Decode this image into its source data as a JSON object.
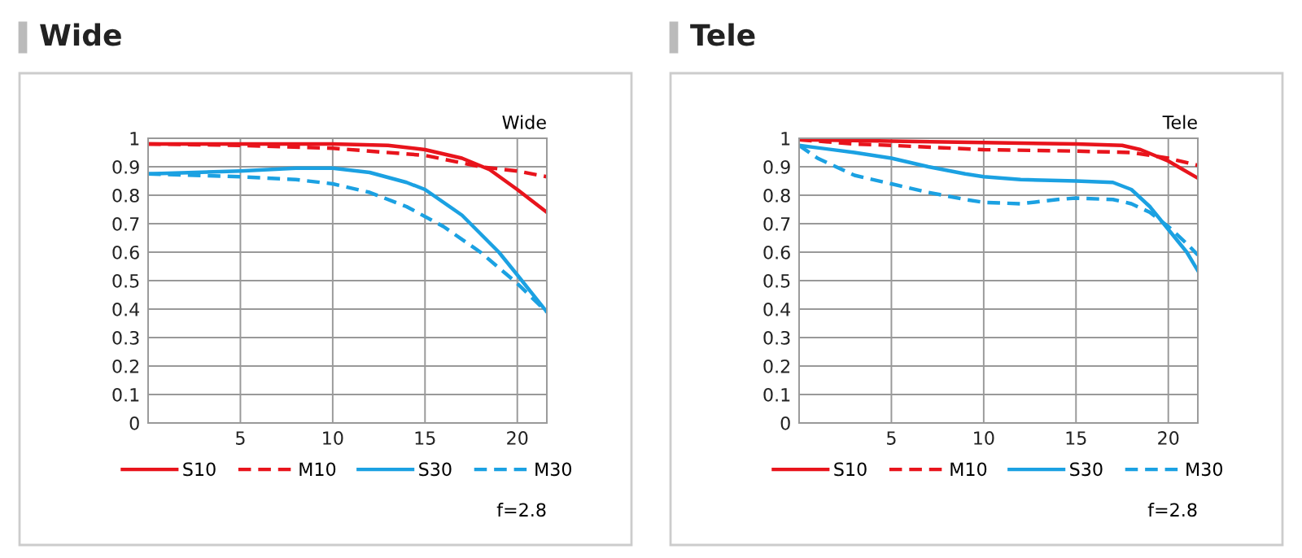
{
  "chart_data": [
    {
      "type": "line",
      "title": "Wide",
      "subtitle": "Wide",
      "annotations": [
        "f=2.8"
      ],
      "xlim": [
        0,
        21.6
      ],
      "xticks": [
        5,
        10,
        15,
        20
      ],
      "ylim": [
        0,
        1
      ],
      "yticks": [
        0,
        0.1,
        0.2,
        0.3,
        0.4,
        0.5,
        0.6,
        0.7,
        0.8,
        0.9,
        1
      ],
      "grid": true,
      "legend": "bottom",
      "series": [
        {
          "name": "S10",
          "color": "#e8141c",
          "line_style": "solid",
          "x": [
            0,
            5,
            10,
            13,
            15,
            17,
            18.5,
            20,
            21.6
          ],
          "values": [
            0.98,
            0.98,
            0.98,
            0.975,
            0.96,
            0.93,
            0.89,
            0.82,
            0.74
          ]
        },
        {
          "name": "M10",
          "color": "#e8141c",
          "line_style": "dashed",
          "x": [
            0,
            5,
            10,
            15,
            18,
            20,
            21.6
          ],
          "values": [
            0.98,
            0.975,
            0.965,
            0.94,
            0.9,
            0.885,
            0.865
          ]
        },
        {
          "name": "S30",
          "color": "#1ba1e2",
          "line_style": "solid",
          "x": [
            0,
            5,
            8,
            10,
            12,
            14,
            15,
            17,
            19,
            20,
            21.6
          ],
          "values": [
            0.875,
            0.885,
            0.895,
            0.895,
            0.88,
            0.845,
            0.82,
            0.73,
            0.6,
            0.52,
            0.39
          ]
        },
        {
          "name": "M30",
          "color": "#1ba1e2",
          "line_style": "dashed",
          "x": [
            0,
            5,
            8,
            10,
            12,
            14,
            16,
            18,
            20,
            21.6
          ],
          "values": [
            0.875,
            0.865,
            0.855,
            0.84,
            0.81,
            0.76,
            0.69,
            0.6,
            0.49,
            0.39
          ]
        }
      ]
    },
    {
      "type": "line",
      "title": "Tele",
      "subtitle": "Tele",
      "annotations": [
        "f=2.8"
      ],
      "xlim": [
        0,
        21.6
      ],
      "xticks": [
        5,
        10,
        15,
        20
      ],
      "ylim": [
        0,
        1
      ],
      "yticks": [
        0,
        0.1,
        0.2,
        0.3,
        0.4,
        0.5,
        0.6,
        0.7,
        0.8,
        0.9,
        1
      ],
      "grid": true,
      "legend": "bottom",
      "series": [
        {
          "name": "S10",
          "color": "#e8141c",
          "line_style": "solid",
          "x": [
            0,
            5,
            10,
            15,
            17.5,
            18.5,
            20,
            21.6
          ],
          "values": [
            0.995,
            0.99,
            0.985,
            0.98,
            0.975,
            0.96,
            0.92,
            0.86
          ]
        },
        {
          "name": "M10",
          "color": "#e8141c",
          "line_style": "dashed",
          "x": [
            0,
            3,
            5,
            10,
            15,
            18,
            20,
            21.6
          ],
          "values": [
            0.995,
            0.98,
            0.975,
            0.96,
            0.955,
            0.95,
            0.93,
            0.905
          ]
        },
        {
          "name": "S30",
          "color": "#1ba1e2",
          "line_style": "solid",
          "x": [
            0,
            3,
            5,
            7,
            9,
            10,
            12,
            15,
            17,
            18,
            19,
            20,
            21,
            21.6
          ],
          "values": [
            0.975,
            0.95,
            0.93,
            0.9,
            0.875,
            0.865,
            0.855,
            0.85,
            0.845,
            0.82,
            0.76,
            0.68,
            0.6,
            0.535
          ]
        },
        {
          "name": "M30",
          "color": "#1ba1e2",
          "line_style": "dashed",
          "x": [
            0,
            1,
            3,
            5,
            7,
            9,
            10,
            12,
            14,
            15,
            17,
            18,
            19,
            20,
            21,
            21.6
          ],
          "values": [
            0.975,
            0.93,
            0.87,
            0.84,
            0.81,
            0.785,
            0.775,
            0.77,
            0.785,
            0.79,
            0.785,
            0.77,
            0.74,
            0.69,
            0.63,
            0.59
          ]
        }
      ]
    }
  ]
}
